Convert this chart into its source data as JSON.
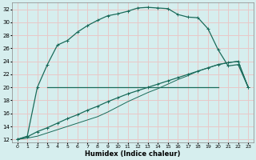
{
  "title": "",
  "xlabel": "Humidex (Indice chaleur)",
  "bg_color": "#d6eeee",
  "line_color": "#1a6b5a",
  "grid_color": "#e8c8c8",
  "xlim": [
    -0.5,
    23.5
  ],
  "ylim": [
    11.5,
    33
  ],
  "xticks": [
    0,
    1,
    2,
    3,
    4,
    5,
    6,
    7,
    8,
    9,
    10,
    11,
    12,
    13,
    14,
    15,
    16,
    17,
    18,
    19,
    20,
    21,
    22,
    23
  ],
  "yticks": [
    12,
    14,
    16,
    18,
    20,
    22,
    24,
    26,
    28,
    30,
    32
  ],
  "line1_x": [
    0,
    1,
    2,
    3,
    4,
    5,
    6,
    7,
    8,
    9,
    10,
    11,
    12,
    13,
    14,
    15,
    16,
    17,
    18,
    19,
    20,
    21,
    22,
    23
  ],
  "line1_y": [
    12,
    12.5,
    20,
    23.5,
    26.5,
    27.2,
    28.5,
    29.5,
    30.3,
    31.0,
    31.3,
    31.7,
    32.2,
    32.3,
    32.2,
    32.1,
    31.2,
    30.8,
    30.7,
    29.0,
    25.8,
    23.3,
    23.5,
    20.0
  ],
  "line2_x": [
    0,
    1,
    2,
    3,
    4,
    5,
    6,
    7,
    8,
    9,
    10,
    11,
    12,
    13,
    14,
    15,
    16,
    17,
    18,
    19,
    20,
    21,
    22,
    23
  ],
  "line2_y": [
    12,
    12.4,
    13.2,
    13.8,
    14.5,
    15.2,
    15.8,
    16.5,
    17.1,
    17.8,
    18.4,
    19.0,
    19.5,
    20.0,
    20.5,
    21.0,
    21.5,
    22.0,
    22.5,
    23.0,
    23.5,
    23.8,
    24.0,
    20.0
  ],
  "line3_x": [
    3,
    20
  ],
  "line3_y": [
    20,
    20
  ],
  "line4_x": [
    0,
    1,
    2,
    3,
    4,
    5,
    6,
    7,
    8,
    9,
    10,
    11,
    12,
    13,
    14,
    15,
    16,
    17,
    18,
    19,
    20,
    21,
    22,
    23
  ],
  "line4_y": [
    12,
    12.2,
    12.5,
    13.0,
    13.5,
    14.0,
    14.5,
    15.0,
    15.5,
    16.2,
    17.0,
    17.8,
    18.5,
    19.2,
    19.8,
    20.5,
    21.2,
    21.8,
    22.5,
    23.0,
    23.5,
    23.8,
    24.0,
    20.0
  ]
}
